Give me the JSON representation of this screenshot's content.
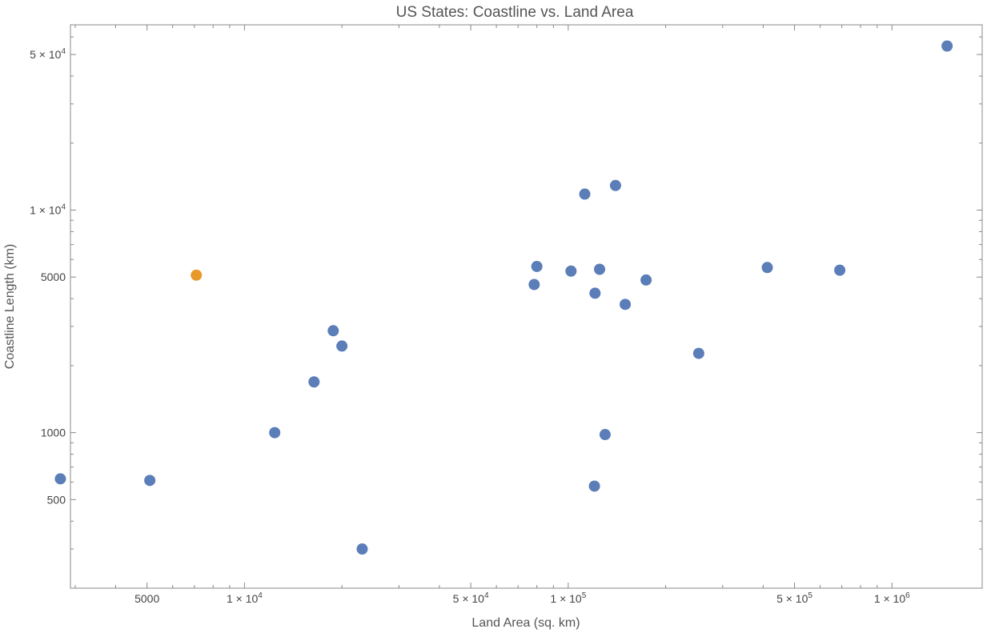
{
  "chart_data": {
    "type": "scatter",
    "title": "US States: Coastline vs. Land Area",
    "xlabel": "Land Area (sq. km)",
    "ylabel": "Coastline Length (km)",
    "xscale": "log",
    "yscale": "log",
    "xlim": [
      2900,
      1900000
    ],
    "ylim": [
      200,
      68000
    ],
    "grid": false,
    "legend": "none",
    "colors": {
      "default": "#5b7db8",
      "highlight": "#e8992a"
    },
    "x_ticks": [
      {
        "value": 5000,
        "label": "5000"
      },
      {
        "value": 10000,
        "label": "1 × 10",
        "exp": "4"
      },
      {
        "value": 50000,
        "label": "5 × 10",
        "exp": "4"
      },
      {
        "value": 100000,
        "label": "1 × 10",
        "exp": "5"
      },
      {
        "value": 500000,
        "label": "5 × 10",
        "exp": "5"
      },
      {
        "value": 1000000,
        "label": "1 × 10",
        "exp": "6"
      }
    ],
    "y_ticks": [
      {
        "value": 500,
        "label": "500"
      },
      {
        "value": 1000,
        "label": "1000"
      },
      {
        "value": 5000,
        "label": "5000"
      },
      {
        "value": 10000,
        "label": "1 × 10",
        "exp": "4"
      },
      {
        "value": 50000,
        "label": "5 × 10",
        "exp": "4"
      }
    ],
    "points": [
      {
        "x": 2700,
        "y": 620,
        "highlight": false
      },
      {
        "x": 5100,
        "y": 610,
        "highlight": false
      },
      {
        "x": 7100,
        "y": 5100,
        "highlight": true
      },
      {
        "x": 12400,
        "y": 1000,
        "highlight": false
      },
      {
        "x": 16400,
        "y": 1690,
        "highlight": false
      },
      {
        "x": 18800,
        "y": 2870,
        "highlight": false
      },
      {
        "x": 20000,
        "y": 2450,
        "highlight": false
      },
      {
        "x": 23100,
        "y": 300,
        "highlight": false
      },
      {
        "x": 78500,
        "y": 4630,
        "highlight": false
      },
      {
        "x": 80000,
        "y": 5580,
        "highlight": false
      },
      {
        "x": 102000,
        "y": 5320,
        "highlight": false
      },
      {
        "x": 112500,
        "y": 11800,
        "highlight": false
      },
      {
        "x": 121000,
        "y": 4230,
        "highlight": false
      },
      {
        "x": 120500,
        "y": 575,
        "highlight": false
      },
      {
        "x": 125000,
        "y": 5420,
        "highlight": false
      },
      {
        "x": 130000,
        "y": 980,
        "highlight": false
      },
      {
        "x": 140000,
        "y": 12900,
        "highlight": false
      },
      {
        "x": 150000,
        "y": 3770,
        "highlight": false
      },
      {
        "x": 174000,
        "y": 4850,
        "highlight": false
      },
      {
        "x": 253000,
        "y": 2270,
        "highlight": false
      },
      {
        "x": 412000,
        "y": 5520,
        "highlight": false
      },
      {
        "x": 690000,
        "y": 5370,
        "highlight": false
      },
      {
        "x": 1480000,
        "y": 54600,
        "highlight": false
      }
    ]
  }
}
